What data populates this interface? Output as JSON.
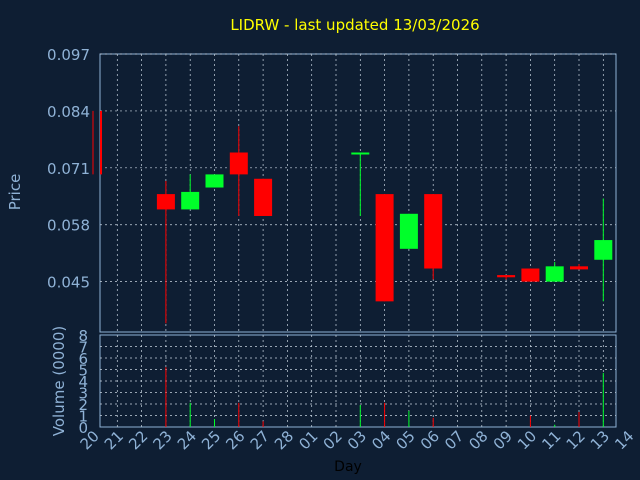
{
  "chart_data": {
    "type": "candlestick",
    "title": "LIDRW - last updated 13/03/2026",
    "ylabel": "Price",
    "ylabel_volume": "Volume (0000)",
    "xlabel": "Day",
    "x_ticks": [
      "20",
      "21",
      "22",
      "23",
      "24",
      "25",
      "26",
      "27",
      "28",
      "01",
      "02",
      "03",
      "04",
      "05",
      "06",
      "07",
      "08",
      "09",
      "10",
      "11",
      "12",
      "13",
      "14"
    ],
    "price_ticks": [
      "0.097",
      "0.084",
      "0.071",
      "0.058",
      "0.045"
    ],
    "price_tick_values": [
      0.097,
      0.084,
      0.071,
      0.058,
      0.045
    ],
    "ylim": [
      0.0335,
      0.097
    ],
    "volume_ticks": [
      "0",
      "1",
      "2",
      "3",
      "4",
      "5",
      "6",
      "7",
      "8"
    ],
    "volume_ylim": [
      0,
      8
    ],
    "grid": true,
    "colors": {
      "up": "#00ff2a",
      "down": "#ff0000",
      "background": "#0e1e33",
      "title": "#ffff00",
      "axis_text": "#8fb2d6"
    },
    "candles": [
      {
        "day": "20",
        "open": 0.084,
        "close": 0.0695,
        "high": 0.084,
        "low": 0.0695,
        "volume": 0
      },
      {
        "day": "23",
        "open": 0.065,
        "close": 0.0615,
        "high": 0.068,
        "low": 0.0355,
        "volume": 5.2
      },
      {
        "day": "24",
        "open": 0.0615,
        "close": 0.0655,
        "high": 0.0695,
        "low": 0.0615,
        "volume": 2.1
      },
      {
        "day": "25",
        "open": 0.0665,
        "close": 0.0695,
        "high": 0.0695,
        "low": 0.0665,
        "volume": 0.7
      },
      {
        "day": "26",
        "open": 0.0745,
        "close": 0.0695,
        "high": 0.0805,
        "low": 0.06,
        "volume": 2.1
      },
      {
        "day": "27",
        "open": 0.0685,
        "close": 0.06,
        "high": 0.0685,
        "low": 0.06,
        "volume": 0.5
      },
      {
        "day": "03",
        "open": 0.0745,
        "close": 0.0745,
        "high": 0.0745,
        "low": 0.06,
        "volume": 1.9
      },
      {
        "day": "04",
        "open": 0.065,
        "close": 0.0405,
        "high": 0.065,
        "low": 0.0405,
        "volume": 2.1
      },
      {
        "day": "05",
        "open": 0.0525,
        "close": 0.0605,
        "high": 0.0605,
        "low": 0.0525,
        "volume": 1.4
      },
      {
        "day": "06",
        "open": 0.065,
        "close": 0.048,
        "high": 0.065,
        "low": 0.0455,
        "volume": 0.8
      },
      {
        "day": "09",
        "open": 0.0465,
        "close": 0.046,
        "high": 0.0465,
        "low": 0.0455,
        "volume": 0
      },
      {
        "day": "10",
        "open": 0.048,
        "close": 0.045,
        "high": 0.048,
        "low": 0.045,
        "volume": 1.0
      },
      {
        "day": "11",
        "open": 0.045,
        "close": 0.0485,
        "high": 0.0495,
        "low": 0.045,
        "volume": 0.2
      },
      {
        "day": "12",
        "open": 0.0485,
        "close": 0.0478,
        "high": 0.049,
        "low": 0.0478,
        "volume": 1.3
      },
      {
        "day": "13",
        "open": 0.05,
        "close": 0.0545,
        "high": 0.064,
        "low": 0.0405,
        "volume": 4.7
      }
    ]
  }
}
